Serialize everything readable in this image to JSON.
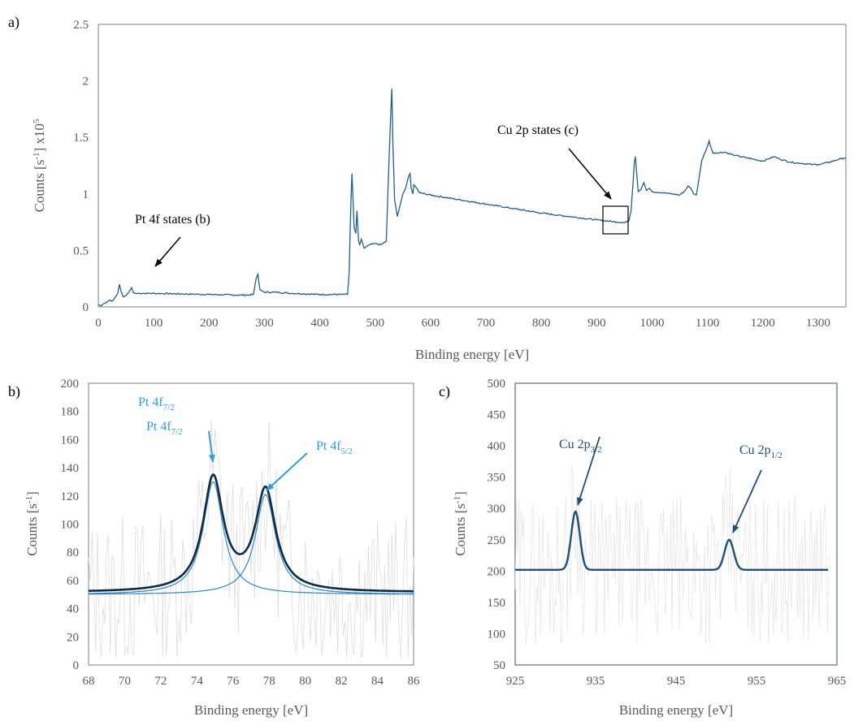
{
  "chart_data": [
    {
      "id": "a",
      "panel_label": "a)",
      "type": "line",
      "xlabel": "Binding energy [eV]",
      "ylabel_base": "Counts [s",
      "ylabel_sup1": "-1",
      "ylabel_mid": "] x10",
      "ylabel_sup2": "5",
      "xlim": [
        0,
        1350
      ],
      "ylim": [
        0,
        2.5
      ],
      "xticks": [
        "0",
        "100",
        "200",
        "300",
        "400",
        "500",
        "600",
        "700",
        "800",
        "900",
        "1000",
        "1100",
        "1200",
        "1300"
      ],
      "yticks": [
        "0",
        "0.5",
        "1",
        "1.5",
        "2",
        "2.5"
      ],
      "grid": false,
      "color": "#1F5F85",
      "annotations": [
        {
          "text": "Pt 4f states (b)"
        },
        {
          "text": "Cu 2p states (c)"
        }
      ],
      "series": [
        {
          "x": [
            0,
            5,
            10,
            15,
            20,
            25,
            30,
            35,
            38,
            41,
            45,
            50,
            55,
            60,
            63,
            66,
            70,
            80,
            90,
            100,
            150,
            200,
            250,
            270,
            280,
            285,
            288,
            292,
            300,
            320,
            350,
            400,
            450,
            453,
            456,
            458,
            460,
            462,
            465,
            467,
            470,
            472,
            475,
            480,
            490,
            500,
            510,
            520,
            525,
            528,
            530,
            532,
            535,
            540,
            545,
            550,
            555,
            560,
            563,
            565,
            568,
            570,
            575,
            580,
            600,
            650,
            700,
            750,
            800,
            850,
            900,
            950,
            958,
            962,
            965,
            968,
            970,
            972,
            975,
            980,
            985,
            990,
            995,
            1000,
            1020,
            1050,
            1060,
            1065,
            1070,
            1075,
            1080,
            1090,
            1100,
            1103,
            1105,
            1110,
            1130,
            1150,
            1180,
            1200,
            1210,
            1220,
            1230,
            1250,
            1270,
            1290,
            1300,
            1320,
            1340,
            1350
          ],
          "y": [
            0.02,
            0.01,
            0.03,
            0.04,
            0.06,
            0.05,
            0.08,
            0.12,
            0.2,
            0.14,
            0.09,
            0.1,
            0.13,
            0.17,
            0.13,
            0.12,
            0.12,
            0.12,
            0.12,
            0.12,
            0.115,
            0.11,
            0.105,
            0.105,
            0.11,
            0.25,
            0.29,
            0.15,
            0.13,
            0.13,
            0.12,
            0.11,
            0.11,
            0.3,
            0.9,
            1.18,
            0.95,
            0.7,
            0.65,
            0.85,
            0.58,
            0.55,
            0.6,
            0.52,
            0.55,
            0.56,
            0.55,
            0.58,
            1.3,
            1.7,
            1.93,
            1.45,
            0.95,
            0.8,
            0.9,
            1.0,
            1.05,
            1.15,
            1.18,
            1.05,
            1.0,
            1.08,
            1.05,
            1.01,
            0.99,
            0.95,
            0.91,
            0.87,
            0.83,
            0.8,
            0.77,
            0.745,
            0.76,
            0.85,
            1.05,
            1.28,
            1.33,
            1.2,
            1.02,
            1.04,
            1.1,
            1.03,
            1.05,
            1.02,
            1.01,
            0.99,
            1.03,
            1.07,
            1.05,
            1.0,
            0.99,
            1.3,
            1.42,
            1.47,
            1.43,
            1.36,
            1.37,
            1.34,
            1.31,
            1.29,
            1.31,
            1.33,
            1.31,
            1.28,
            1.27,
            1.26,
            1.26,
            1.28,
            1.31,
            1.32
          ]
        }
      ]
    },
    {
      "id": "b",
      "panel_label": "b)",
      "type": "line",
      "xlabel": "Binding energy [eV]",
      "ylabel_base": "Counts [s",
      "ylabel_sup1": "-1",
      "ylabel_mid": "]",
      "xlim": [
        68,
        86
      ],
      "ylim": [
        0,
        200
      ],
      "xticks": [
        "68",
        "70",
        "72",
        "74",
        "76",
        "78",
        "80",
        "82",
        "84",
        "86"
      ],
      "yticks": [
        "0",
        "20",
        "40",
        "60",
        "80",
        "100",
        "120",
        "140",
        "160",
        "180",
        "200"
      ],
      "grid": false,
      "colors": {
        "envelope": "#0D2B45",
        "component": "#2E86C1",
        "label": "#2E9FD8",
        "noise": "#D9D9D9"
      },
      "peaks": [
        {
          "label": "Pt 4f",
          "sub": "7/2",
          "center": 74.9,
          "height": 80,
          "width": 0.68
        },
        {
          "label": "Pt 4f",
          "sub": "5/2",
          "center": 77.8,
          "height": 71,
          "width": 0.68
        }
      ],
      "label_top": {
        "label": "Pt 4f",
        "sub": "7/2"
      },
      "baseline": 50
    },
    {
      "id": "c",
      "panel_label": "c)",
      "type": "line",
      "xlabel": "Binding energy [eV]",
      "ylabel_base": "Counts [s",
      "ylabel_sup1": "-1",
      "ylabel_mid": "]",
      "xlim": [
        925,
        965
      ],
      "ylim": [
        50,
        500
      ],
      "xticks": [
        "925",
        "935",
        "945",
        "955",
        "965"
      ],
      "yticks": [
        "50",
        "100",
        "150",
        "200",
        "250",
        "300",
        "350",
        "400",
        "450",
        "500"
      ],
      "grid": false,
      "colors": {
        "line": "#1F4E79",
        "label": "#1F4E79",
        "noise": "#E0E0E0"
      },
      "peaks": [
        {
          "label": "Cu 2p",
          "sub": "3/2",
          "center": 932.5,
          "height": 93,
          "width": 0.75
        },
        {
          "label": "Cu 2p",
          "sub": "1/2",
          "center": 951.6,
          "height": 48,
          "width": 0.8
        }
      ],
      "baseline": 202
    }
  ]
}
